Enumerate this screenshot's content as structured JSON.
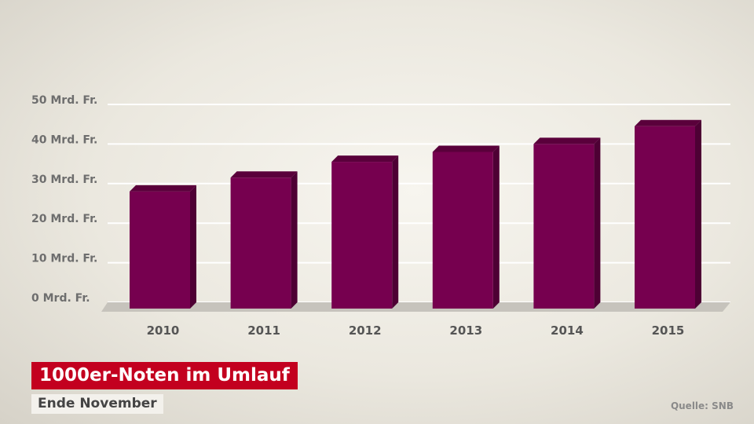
{
  "chart_data": {
    "type": "bar",
    "title": "1000er-Noten im Umlauf",
    "subtitle": "Ende November",
    "source": "Quelle: SNB",
    "categories": [
      "2010",
      "2011",
      "2012",
      "2013",
      "2014",
      "2015"
    ],
    "values": [
      28,
      31.5,
      35.5,
      38,
      40,
      44.5
    ],
    "y_ticks": [
      "0 Mrd. Fr.",
      "10 Mrd. Fr.",
      "20 Mrd. Fr.",
      "30 Mrd. Fr.",
      "40 Mrd. Fr.",
      "50 Mrd. Fr."
    ],
    "ylim": [
      0,
      50
    ],
    "grid": true,
    "bar_color": "#76004f",
    "bar_top_color": "#5a003b",
    "bar_side_color": "#4e0034"
  }
}
